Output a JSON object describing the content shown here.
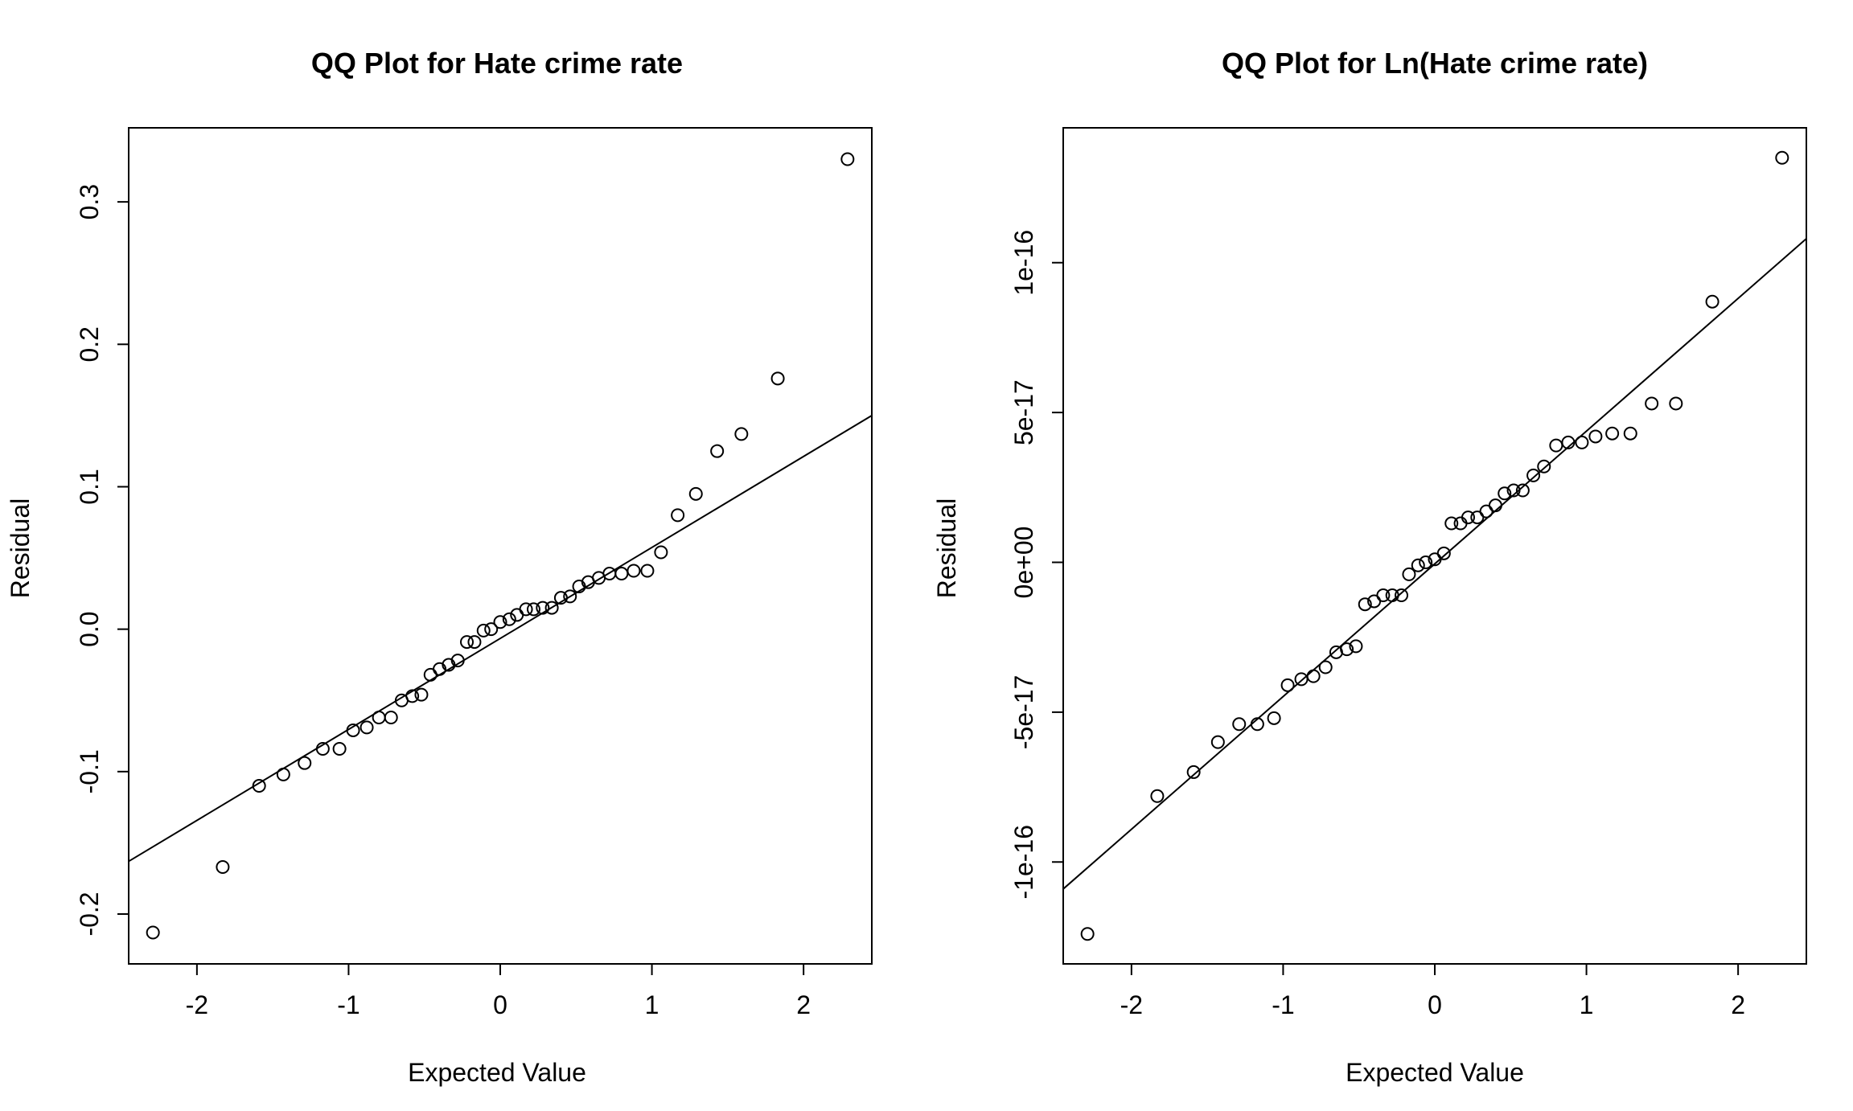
{
  "chart_data": [
    {
      "type": "scatter",
      "title": "QQ Plot for Hate crime rate",
      "xlabel": "Expected Value",
      "ylabel": "Residual",
      "xlim": [
        -2.45,
        2.45
      ],
      "ylim": [
        -0.235,
        0.352
      ],
      "xticks": [
        -2,
        -1,
        0,
        1,
        2
      ],
      "xtick_labels": [
        "-2",
        "-1",
        "0",
        "1",
        "2"
      ],
      "yticks": [
        -0.2,
        -0.1,
        0.0,
        0.1,
        0.2,
        0.3
      ],
      "ytick_labels": [
        "-0.2",
        "-0.1",
        "0.0",
        "0.1",
        "0.2",
        "0.3"
      ],
      "grid": false,
      "reference_line": {
        "x": [
          -2.45,
          2.45
        ],
        "y": [
          -0.163,
          0.15
        ]
      },
      "x": [
        -2.29,
        -1.83,
        -1.59,
        -1.43,
        -1.29,
        -1.17,
        -1.06,
        -0.97,
        -0.88,
        -0.8,
        -0.72,
        -0.65,
        -0.58,
        -0.52,
        -0.46,
        -0.4,
        -0.34,
        -0.28,
        -0.22,
        -0.17,
        -0.11,
        -0.06,
        0.0,
        0.06,
        0.11,
        0.17,
        0.22,
        0.28,
        0.34,
        0.4,
        0.46,
        0.52,
        0.58,
        0.65,
        0.72,
        0.8,
        0.88,
        0.97,
        1.06,
        1.17,
        1.29,
        1.43,
        1.59,
        1.83,
        2.29
      ],
      "y": [
        -0.213,
        -0.167,
        -0.11,
        -0.102,
        -0.094,
        -0.084,
        -0.084,
        -0.071,
        -0.069,
        -0.062,
        -0.062,
        -0.05,
        -0.047,
        -0.046,
        -0.032,
        -0.028,
        -0.025,
        -0.022,
        -0.009,
        -0.009,
        -0.001,
        0.0,
        0.005,
        0.007,
        0.01,
        0.014,
        0.014,
        0.015,
        0.015,
        0.022,
        0.023,
        0.03,
        0.033,
        0.036,
        0.039,
        0.039,
        0.041,
        0.041,
        0.054,
        0.08,
        0.095,
        0.125,
        0.137,
        0.176,
        0.33
      ]
    },
    {
      "type": "scatter",
      "title": "QQ Plot for Ln(Hate crime rate)",
      "xlabel": "Expected Value",
      "ylabel": "Residual",
      "xlim": [
        -2.45,
        2.45
      ],
      "ylim": [
        -1.34e-16,
        1.45e-16
      ],
      "xticks": [
        -2,
        -1,
        0,
        1,
        2
      ],
      "xtick_labels": [
        "-2",
        "-1",
        "0",
        "1",
        "2"
      ],
      "yticks": [
        -1e-16,
        -5e-17,
        0,
        5e-17,
        1e-16
      ],
      "ytick_labels": [
        "-1e-16",
        "-5e-17",
        "0e+00",
        "5e-17",
        "1e-16"
      ],
      "grid": false,
      "reference_line": {
        "x": [
          -2.45,
          2.45
        ],
        "y": [
          -1.09e-16,
          1.08e-16
        ]
      },
      "x": [
        -2.29,
        -1.83,
        -1.59,
        -1.43,
        -1.29,
        -1.17,
        -1.06,
        -0.97,
        -0.88,
        -0.8,
        -0.72,
        -0.65,
        -0.58,
        -0.52,
        -0.46,
        -0.4,
        -0.34,
        -0.28,
        -0.22,
        -0.17,
        -0.11,
        -0.06,
        0.0,
        0.06,
        0.11,
        0.17,
        0.22,
        0.28,
        0.34,
        0.4,
        0.46,
        0.52,
        0.58,
        0.65,
        0.72,
        0.8,
        0.88,
        0.97,
        1.06,
        1.17,
        1.29,
        1.43,
        1.59,
        1.83,
        2.29
      ],
      "y": [
        -1.24e-16,
        -7.8e-17,
        -7e-17,
        -6e-17,
        -5.4e-17,
        -5.4e-17,
        -5.2e-17,
        -4.1e-17,
        -3.9e-17,
        -3.8e-17,
        -3.5e-17,
        -3e-17,
        -2.9e-17,
        -2.8e-17,
        -1.4e-17,
        -1.3e-17,
        -1.1e-17,
        -1.1e-17,
        -1.1e-17,
        -4e-18,
        -1e-18,
        0.0,
        1e-18,
        3e-18,
        1.3e-17,
        1.3e-17,
        1.5e-17,
        1.5e-17,
        1.7e-17,
        1.9e-17,
        2.3e-17,
        2.4e-17,
        2.4e-17,
        2.9e-17,
        3.2e-17,
        3.9e-17,
        4e-17,
        4e-17,
        4.2e-17,
        4.3e-17,
        4.3e-17,
        5.3e-17,
        5.3e-17,
        8.7e-17,
        1.35e-16
      ]
    }
  ]
}
